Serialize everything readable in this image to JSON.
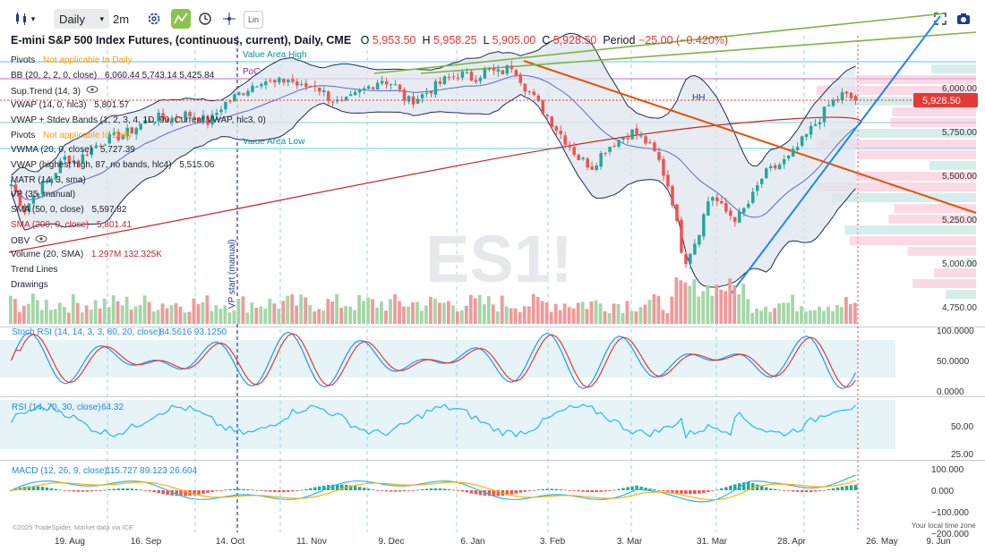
{
  "toolbar": {
    "interval": "Daily",
    "layout_label": "2m",
    "lin_label": "Lin"
  },
  "header": {
    "title": "E-mini S&P 500 Index Futures, (continuous, current), Daily, CME",
    "o_label": "O",
    "o": "5,953.50",
    "h_label": "H",
    "h": "5,958.25",
    "l_label": "L",
    "l": "5,905.00",
    "c_label": "C",
    "c": "5,928.50",
    "period_label": "Period",
    "period": "−25.00 (−0.420%)"
  },
  "overlays": [
    {
      "name": "Pivots",
      "value": "Not applicable to Daily",
      "value_color": "#f59e0b"
    },
    {
      "name": "BB (20, 2, 2, 0, close)",
      "value": "6,060.44  5,743.14  5,425.84"
    },
    {
      "name": "Sup.Trend (14, 3)",
      "value": ""
    },
    {
      "name": "VWAP (14, 0, hlc3)",
      "value": "5,801.57"
    },
    {
      "name": "VWAP + Stdev Bands (1, 2, 3, 4, 1D, 90, Current VWAP, hlc3, 0)",
      "value": ""
    },
    {
      "name": "Pivots",
      "value": "Not applicable to Daily",
      "value_color": "#f59e0b"
    },
    {
      "name": "VWMA (20, 0, close)",
      "value": "5,727.39"
    },
    {
      "name": "VWAP (highest high, 87, no bands, hlc4)",
      "value": "5,515.06"
    },
    {
      "name": "MATR (14, 3, sma)",
      "value": ""
    },
    {
      "name": "VP (35, manual)",
      "value": ""
    },
    {
      "name": "SMA (50, 0, close)",
      "value": "5,597.82"
    },
    {
      "name": "SMA (200, 0, close)",
      "value": "5,801.41",
      "name_color": "#c62828",
      "value_color": "#c62828"
    },
    {
      "name": "OBV",
      "value": ""
    },
    {
      "name": "Volume (20, SMA)",
      "value": "1.297M  132.325K",
      "value_color": "#c62828"
    },
    {
      "name": "Trend Lines",
      "value": ""
    },
    {
      "name": "Drawings",
      "value": ""
    }
  ],
  "chart_labels": {
    "value_area_high": "Value Area High",
    "poc": "PoC",
    "value_area_low": "Value Area Low",
    "vp_start": "VP start (manual)",
    "hh": "HH",
    "watermark": "ES1!",
    "current_price": "5,928.50"
  },
  "panes": {
    "stoch": {
      "label": "Stoch RSI (14, 14, 3, 3, 80, 20, close)",
      "values": "84.5616  93.1250",
      "ticks": [
        "100.0000",
        "50.0000",
        "0.0000"
      ]
    },
    "rsi": {
      "label": "RSI (14, 70, 30, close)",
      "values": "64.32",
      "ticks": [
        "50.00",
        "25.00"
      ]
    },
    "macd": {
      "label": "MACD (12, 26, 9, close)",
      "values": "115.727  89.123  26.604",
      "ticks": [
        "100.000",
        "0.000",
        "−100.000",
        "−200.000"
      ]
    }
  },
  "footer": {
    "copyright": "©2025 TradeSpider, Market data via ICE",
    "timezone": "Your local time zone"
  },
  "colors": {
    "up": "#26a69a",
    "down": "#ef5350",
    "bb": "#1e2a55",
    "sma200": "#c62828",
    "trend_orange": "#e65100",
    "trend_blue": "#1e88e5",
    "trend_green": "#7cb342",
    "stoch_k": "#2196f3",
    "stoch_d": "#e53935",
    "rsi": "#29b6f6",
    "macd_line": "#29b6f6",
    "macd_signal": "#ffb300"
  },
  "chart_data": {
    "type": "candlestick",
    "x_ticks": [
      "19. Aug",
      "16. Sep",
      "14. Oct",
      "11. Nov",
      "9. Dec",
      "6. Jan",
      "3. Feb",
      "3. Mar",
      "31. Mar",
      "28. Apr",
      "26. May",
      "9. Jun"
    ],
    "y_ticks": [
      6000,
      5750,
      5500,
      5250,
      5000,
      4750
    ],
    "ylim": [
      4700,
      6250
    ],
    "close_path": [
      5450,
      5300,
      5420,
      5480,
      5600,
      5580,
      5650,
      5700,
      5720,
      5750,
      5800,
      5830,
      5820,
      5850,
      5840,
      5800,
      5900,
      5950,
      6000,
      6050,
      6020,
      6050,
      6000,
      6020,
      5950,
      5900,
      5950,
      6000,
      6050,
      6020,
      5920,
      5950,
      6000,
      6050,
      6080,
      6050,
      6100,
      6080,
      6130,
      6000,
      5900,
      5800,
      5700,
      5600,
      5550,
      5650,
      5700,
      5750,
      5700,
      5600,
      5400,
      5000,
      5150,
      5400,
      5300,
      5250,
      5350,
      5500,
      5550,
      5600,
      5700,
      5800,
      5900,
      5960,
      5928.5
    ],
    "last": {
      "open": 5953.5,
      "high": 5958.25,
      "low": 5905.0,
      "close": 5928.5
    }
  }
}
